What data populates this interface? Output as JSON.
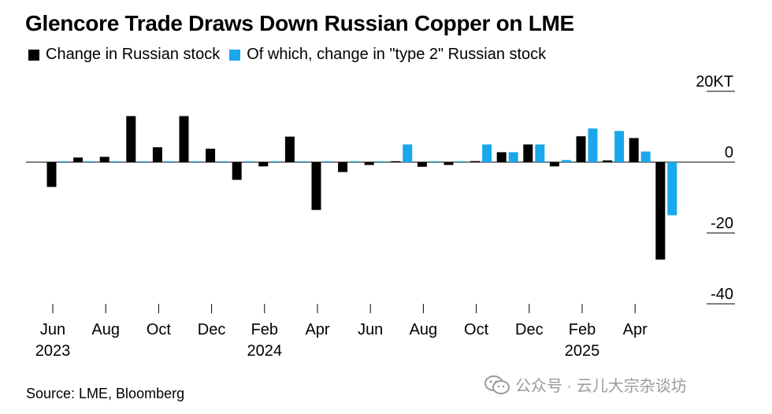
{
  "title": "Glencore Trade Draws Down Russian Copper on LME",
  "legend": [
    {
      "label": "Change in Russian stock",
      "color": "#000000"
    },
    {
      "label": "Of which, change in \"type 2\" Russian stock",
      "color": "#1aa7ec"
    }
  ],
  "source": "Source: LME, Bloomberg",
  "watermark": "公众号 · 云儿大宗杂谈坊",
  "chart_data": {
    "type": "bar",
    "unit_label": "20KT",
    "ylim": [
      -40,
      20
    ],
    "yticks": [
      20,
      0,
      -20,
      -40
    ],
    "ytick_labels": [
      "20KT",
      "0",
      "-20",
      "-40"
    ],
    "grid": false,
    "categories": [
      "2023-06",
      "2023-07",
      "2023-08",
      "2023-09",
      "2023-10",
      "2023-11",
      "2023-12",
      "2024-01",
      "2024-02",
      "2024-03",
      "2024-04",
      "2024-05",
      "2024-06",
      "2024-07",
      "2024-08",
      "2024-09",
      "2024-10",
      "2024-11",
      "2024-12",
      "2025-01",
      "2025-02",
      "2025-03",
      "2025-04",
      "2025-05"
    ],
    "x_tick_labels": [
      {
        "label": "Jun",
        "year": "2023",
        "index": 0
      },
      {
        "label": "Aug",
        "year": "",
        "index": 2
      },
      {
        "label": "Oct",
        "year": "",
        "index": 4
      },
      {
        "label": "Dec",
        "year": "",
        "index": 6
      },
      {
        "label": "Feb",
        "year": "2024",
        "index": 8
      },
      {
        "label": "Apr",
        "year": "",
        "index": 10
      },
      {
        "label": "Jun",
        "year": "",
        "index": 12
      },
      {
        "label": "Aug",
        "year": "",
        "index": 14
      },
      {
        "label": "Oct",
        "year": "",
        "index": 16
      },
      {
        "label": "Dec",
        "year": "",
        "index": 18
      },
      {
        "label": "Feb",
        "year": "2025",
        "index": 20
      },
      {
        "label": "Apr",
        "year": "",
        "index": 22
      }
    ],
    "series": [
      {
        "name": "Change in Russian stock",
        "color": "#000000",
        "values": [
          -7,
          1.3,
          1.5,
          13,
          4.2,
          13,
          3.8,
          -5,
          -1.2,
          7.2,
          -13.5,
          -2.8,
          -0.8,
          0,
          -1.3,
          -0.8,
          0.3,
          2.8,
          5,
          -1.2,
          7.3,
          0.5,
          6.8,
          -27.5
        ]
      },
      {
        "name": "Of which, change in \"type 2\" Russian stock",
        "color": "#1aa7ec",
        "values": [
          0,
          0,
          0,
          0,
          0,
          0,
          0,
          0,
          0,
          0,
          0,
          0,
          0,
          5,
          0,
          0,
          5,
          2.8,
          5,
          0.6,
          9.5,
          8.8,
          3,
          -15
        ]
      }
    ]
  }
}
